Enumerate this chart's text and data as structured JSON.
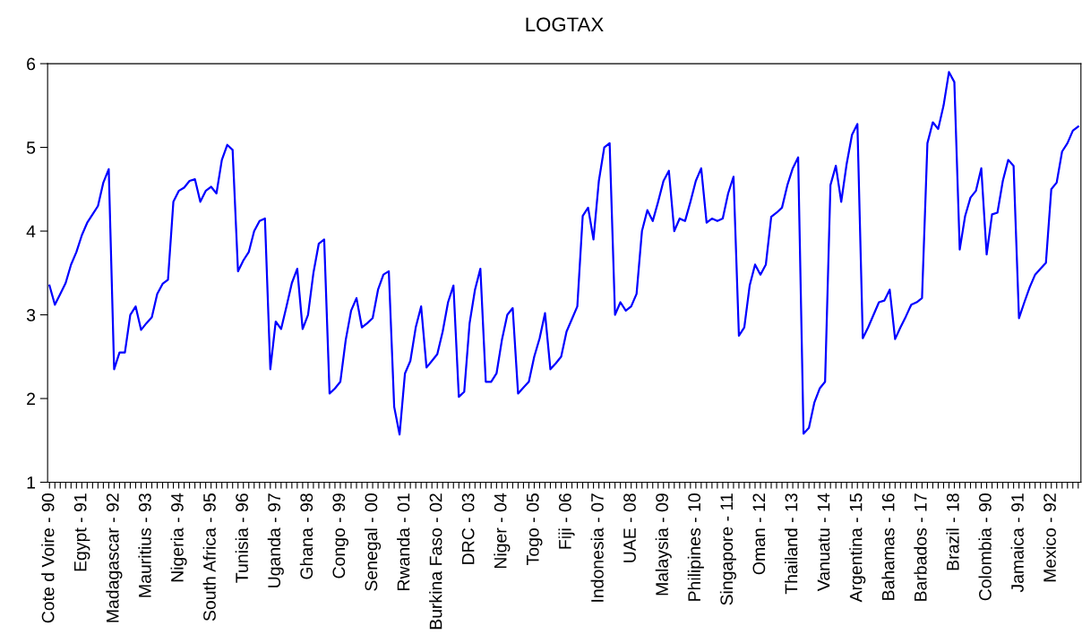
{
  "chart_data": {
    "type": "line",
    "title": "LOGTAX",
    "categories": [
      "Cote d Voire - 90",
      null,
      null,
      null,
      null,
      null,
      "Egypt - 91",
      null,
      null,
      null,
      null,
      null,
      "Madagascar - 92",
      null,
      null,
      null,
      null,
      null,
      "Mauritius - 93",
      null,
      null,
      null,
      null,
      null,
      "Nigeria - 94",
      null,
      null,
      null,
      null,
      null,
      "South Africa - 95",
      null,
      null,
      null,
      null,
      null,
      "Tunisia - 96",
      null,
      null,
      null,
      null,
      null,
      "Uganda - 97",
      null,
      null,
      null,
      null,
      null,
      "Ghana - 98",
      null,
      null,
      null,
      null,
      null,
      "Congo - 99",
      null,
      null,
      null,
      null,
      null,
      "Senegal - 00",
      null,
      null,
      null,
      null,
      null,
      "Rwanda - 01",
      null,
      null,
      null,
      null,
      null,
      "Burkina Faso - 02",
      null,
      null,
      null,
      null,
      null,
      "DRC - 03",
      null,
      null,
      null,
      null,
      null,
      "Niger - 04",
      null,
      null,
      null,
      null,
      null,
      "Togo - 05",
      null,
      null,
      null,
      null,
      null,
      "Fiji - 06",
      null,
      null,
      null,
      null,
      null,
      "Indonesia - 07",
      null,
      null,
      null,
      null,
      null,
      "UAE - 08",
      null,
      null,
      null,
      null,
      null,
      "Malaysia - 09",
      null,
      null,
      null,
      null,
      null,
      "Philipines - 10",
      null,
      null,
      null,
      null,
      null,
      "Singapore - 11",
      null,
      null,
      null,
      null,
      null,
      "Oman - 12",
      null,
      null,
      null,
      null,
      null,
      "Thailand - 13",
      null,
      null,
      null,
      null,
      null,
      "Vanuatu - 14",
      null,
      null,
      null,
      null,
      null,
      "Argentina - 15",
      null,
      null,
      null,
      null,
      null,
      "Bahamas - 16",
      null,
      null,
      null,
      null,
      null,
      "Barbados - 17",
      null,
      null,
      null,
      null,
      null,
      "Brazil - 18",
      null,
      null,
      null,
      null,
      null,
      "Colombia - 90",
      null,
      null,
      null,
      null,
      null,
      "Jamaica - 91",
      null,
      null,
      null,
      null,
      null,
      "Mexico - 92",
      null,
      null,
      null,
      null,
      null
    ],
    "series": [
      {
        "color": "#0000ff",
        "values": [
          3.35,
          3.12,
          3.25,
          3.38,
          3.6,
          3.75,
          3.95,
          4.1,
          4.2,
          4.3,
          4.58,
          4.74,
          2.35,
          2.55,
          2.55,
          3.0,
          3.1,
          2.82,
          2.9,
          2.97,
          3.25,
          3.37,
          3.42,
          4.35,
          4.48,
          4.52,
          4.6,
          4.62,
          4.35,
          4.48,
          4.53,
          4.45,
          4.85,
          5.03,
          4.97,
          3.52,
          3.65,
          3.75,
          4.0,
          4.12,
          4.15,
          2.35,
          2.92,
          2.83,
          3.1,
          3.38,
          3.55,
          2.83,
          3.0,
          3.5,
          3.85,
          3.9,
          2.06,
          2.12,
          2.2,
          2.7,
          3.05,
          3.2,
          2.85,
          2.9,
          2.96,
          3.3,
          3.48,
          3.52,
          1.9,
          1.57,
          2.3,
          2.45,
          2.85,
          3.1,
          2.37,
          2.45,
          2.53,
          2.8,
          3.15,
          3.35,
          2.02,
          2.08,
          2.9,
          3.3,
          3.55,
          2.2,
          2.2,
          2.3,
          2.7,
          3.0,
          3.08,
          2.06,
          2.13,
          2.2,
          2.5,
          2.72,
          3.02,
          2.35,
          2.42,
          2.5,
          2.8,
          2.95,
          3.1,
          4.18,
          4.28,
          3.9,
          4.6,
          5.0,
          5.05,
          3.0,
          3.15,
          3.05,
          3.1,
          3.25,
          4.0,
          4.25,
          4.12,
          4.35,
          4.6,
          4.72,
          4.0,
          4.15,
          4.12,
          4.35,
          4.6,
          4.75,
          4.1,
          4.15,
          4.12,
          4.15,
          4.45,
          4.65,
          2.75,
          2.85,
          3.35,
          3.6,
          3.48,
          3.6,
          4.17,
          4.22,
          4.28,
          4.55,
          4.75,
          4.88,
          1.58,
          1.65,
          1.95,
          2.12,
          2.2,
          4.55,
          4.78,
          4.35,
          4.8,
          5.15,
          5.28,
          2.72,
          2.85,
          3.0,
          3.15,
          3.17,
          3.3,
          2.71,
          2.85,
          2.98,
          3.12,
          3.15,
          3.2,
          5.05,
          5.3,
          5.22,
          5.5,
          5.9,
          5.78,
          3.78,
          4.18,
          4.4,
          4.48,
          4.75,
          3.72,
          4.2,
          4.22,
          4.6,
          4.85,
          4.78,
          2.96,
          3.15,
          3.33,
          3.48,
          3.55,
          3.62,
          4.5,
          4.58,
          4.95,
          5.05,
          5.2,
          5.25
        ]
      }
    ],
    "ylim": [
      1,
      6
    ],
    "yticks": [
      1,
      2,
      3,
      4,
      5,
      6
    ],
    "grid": false,
    "marker": "none",
    "line_style": "solid"
  }
}
